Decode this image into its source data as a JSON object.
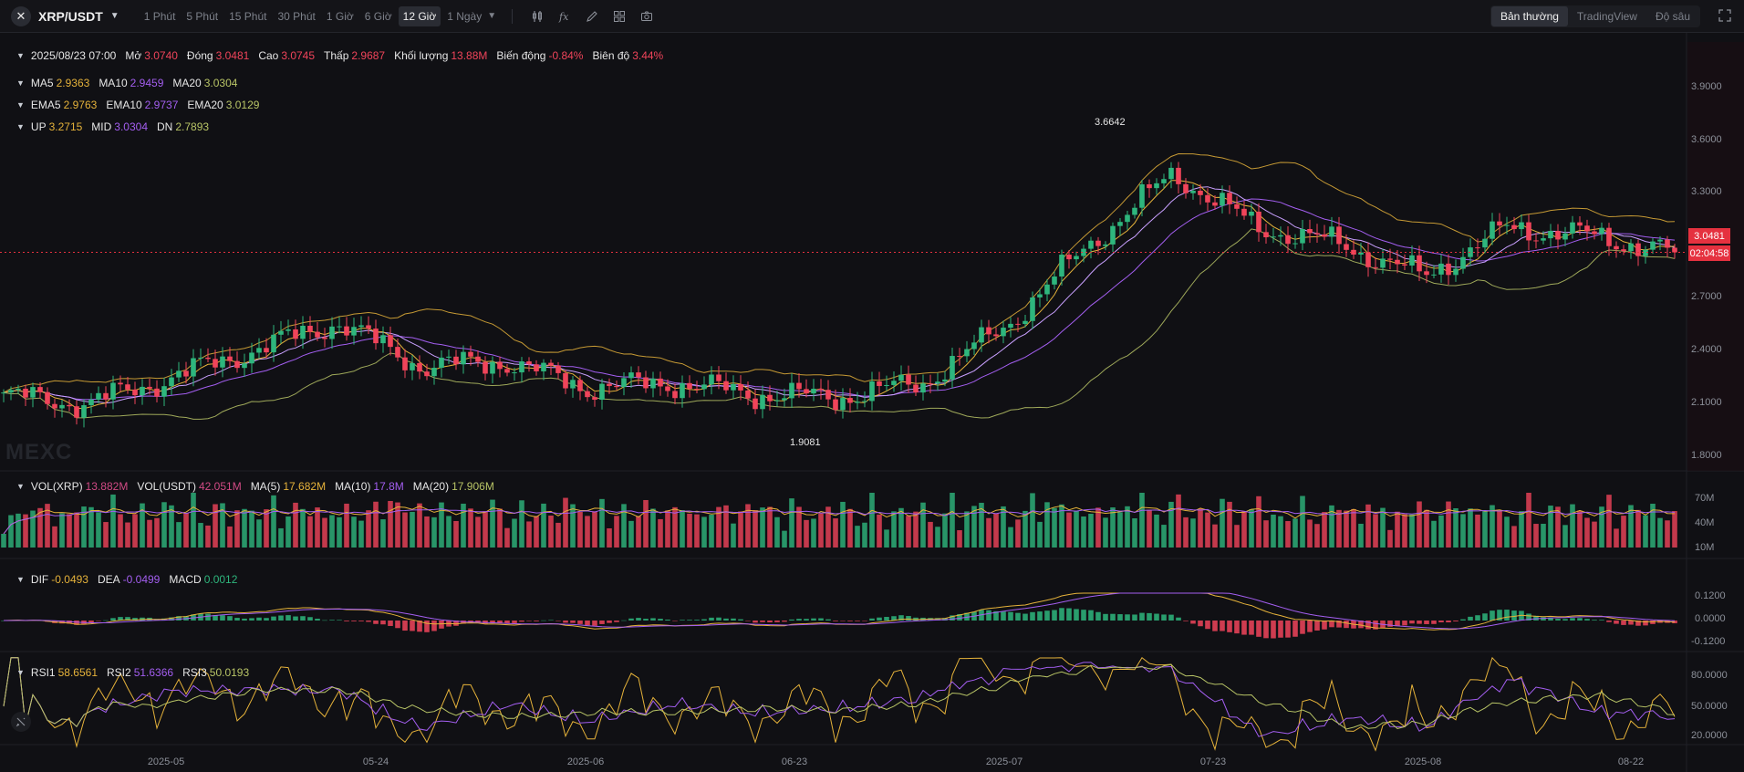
{
  "toolbar": {
    "symbol": "XRP/USDT",
    "intervals": [
      "1 Phút",
      "5 Phút",
      "15 Phút",
      "30 Phút",
      "1 Giờ",
      "6 Giờ",
      "12 Giờ"
    ],
    "active_interval": "12 Giờ",
    "more_interval": "1 Ngày",
    "views": [
      "Bản thường",
      "TradingView",
      "Độ sâu"
    ],
    "active_view": "Bản thường"
  },
  "ohlc": {
    "date": "2025/08/23 07:00",
    "open_label": "Mở",
    "open": "3.0740",
    "close_label": "Đóng",
    "close": "3.0481",
    "high_label": "Cao",
    "high": "3.0745",
    "low_label": "Thấp",
    "low": "2.9687",
    "volume_label": "Khối lượng",
    "volume": "13.88M",
    "change_label": "Biến động",
    "change": "-0.84%",
    "amplitude_label": "Biên độ",
    "amplitude": "3.44%"
  },
  "ma": {
    "ma5_label": "MA5",
    "ma5": "2.9363",
    "ma10_label": "MA10",
    "ma10": "2.9459",
    "ma20_label": "MA20",
    "ma20": "3.0304"
  },
  "ema": {
    "ema5_label": "EMA5",
    "ema5": "2.9763",
    "ema10_label": "EMA10",
    "ema10": "2.9737",
    "ema20_label": "EMA20",
    "ema20": "3.0129"
  },
  "boll": {
    "up_label": "UP",
    "up": "3.2715",
    "mid_label": "MID",
    "mid": "3.0304",
    "dn_label": "DN",
    "dn": "2.7893"
  },
  "vol": {
    "xrp_label": "VOL(XRP)",
    "xrp": "13.882M",
    "usdt_label": "VOL(USDT)",
    "usdt": "42.051M",
    "ma5_label": "MA(5)",
    "ma5": "17.682M",
    "ma10_label": "MA(10)",
    "ma10": "17.8M",
    "ma20_label": "MA(20)",
    "ma20": "17.906M"
  },
  "macd": {
    "dif_label": "DIF",
    "dif": "-0.0493",
    "dea_label": "DEA",
    "dea": "-0.0499",
    "macd_label": "MACD",
    "macd": "0.0012"
  },
  "rsi": {
    "rsi1_label": "RSI1",
    "rsi1": "58.6561",
    "rsi2_label": "RSI2",
    "rsi2": "51.6366",
    "rsi3_label": "RSI3",
    "rsi3": "50.0193"
  },
  "watermark": "MEXC",
  "current_price": "3.0481",
  "countdown": "02:04:58",
  "high_marker": "3.6642",
  "low_marker": "1.9081",
  "price_axis": [
    "3.9000",
    "3.6000",
    "3.3000",
    "3.0000",
    "2.7000",
    "2.4000",
    "2.1000",
    "1.8000"
  ],
  "volume_axis": [
    "70M",
    "40M",
    "10M"
  ],
  "macd_axis": [
    "0.1200",
    "0.0000",
    "-0.1200"
  ],
  "rsi_axis": [
    "80.0000",
    "50.0000",
    "20.0000"
  ],
  "time_axis": [
    "2025-05",
    "05-24",
    "2025-06",
    "06-23",
    "2025-07",
    "07-23",
    "2025-08",
    "08-22"
  ],
  "colors": {
    "up": "#2eb67d",
    "down": "#f0445a",
    "ma5": "#e5b23a",
    "ma10": "#a35ef0",
    "ma20": "#b8c466",
    "background": "#101014"
  },
  "chart_data": {
    "type": "candlestick",
    "x": [
      "2025-04-13",
      "2025-04-20",
      "2025-04-27",
      "2025-05-04",
      "2025-05-11",
      "2025-05-18",
      "2025-05-24",
      "2025-06-01",
      "2025-06-08",
      "2025-06-15",
      "2025-06-23",
      "2025-06-30",
      "2025-07-07",
      "2025-07-14",
      "2025-07-18",
      "2025-07-23",
      "2025-07-30",
      "2025-08-05",
      "2025-08-11",
      "2025-08-16",
      "2025-08-22"
    ],
    "series": [
      {
        "name": "Close",
        "values": [
          2.17,
          2.12,
          2.28,
          2.45,
          2.62,
          2.35,
          2.38,
          2.22,
          2.25,
          2.18,
          2.16,
          2.25,
          2.6,
          3.1,
          3.53,
          3.2,
          3.1,
          2.9,
          3.2,
          3.15,
          3.0481
        ]
      }
    ],
    "ylim": [
      1.75,
      4.05
    ],
    "high_marker": 3.6642,
    "low_marker": 1.9081,
    "current_price": 3.0481,
    "indicators": [
      "MA",
      "EMA",
      "BOLL",
      "VOL",
      "MACD",
      "RSI"
    ],
    "xlabel": "",
    "ylabel": ""
  }
}
